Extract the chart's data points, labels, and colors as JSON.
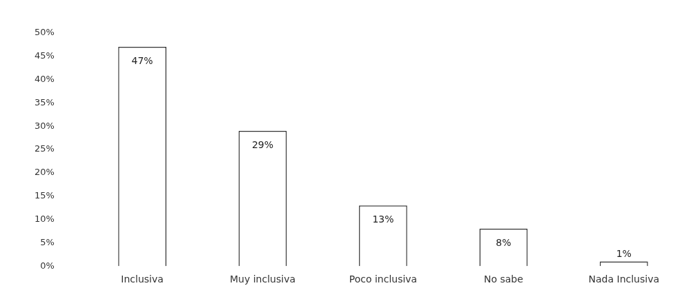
{
  "chart_data": {
    "type": "bar",
    "categories": [
      "Inclusiva",
      "Muy inclusiva",
      "Poco inclusiva",
      "No sabe",
      "Nada Inclusiva"
    ],
    "values": [
      47,
      29,
      13,
      8,
      1
    ],
    "value_labels": [
      "47%",
      "29%",
      "13%",
      "8%",
      "1%"
    ],
    "color": "#ffffff",
    "ylim": [
      0,
      50
    ],
    "yticks": [
      {
        "value": 0,
        "label": "0%"
      },
      {
        "value": 5,
        "label": "5%"
      },
      {
        "value": 10,
        "label": "10%"
      },
      {
        "value": 15,
        "label": "15%"
      },
      {
        "value": 20,
        "label": "20%"
      },
      {
        "value": 25,
        "label": "25%"
      },
      {
        "value": 30,
        "label": "30%"
      },
      {
        "value": 35,
        "label": "35%"
      },
      {
        "value": 40,
        "label": "40%"
      },
      {
        "value": 45,
        "label": "45%"
      },
      {
        "value": 50,
        "label": "50%"
      }
    ],
    "grid": false,
    "legend": false
  }
}
